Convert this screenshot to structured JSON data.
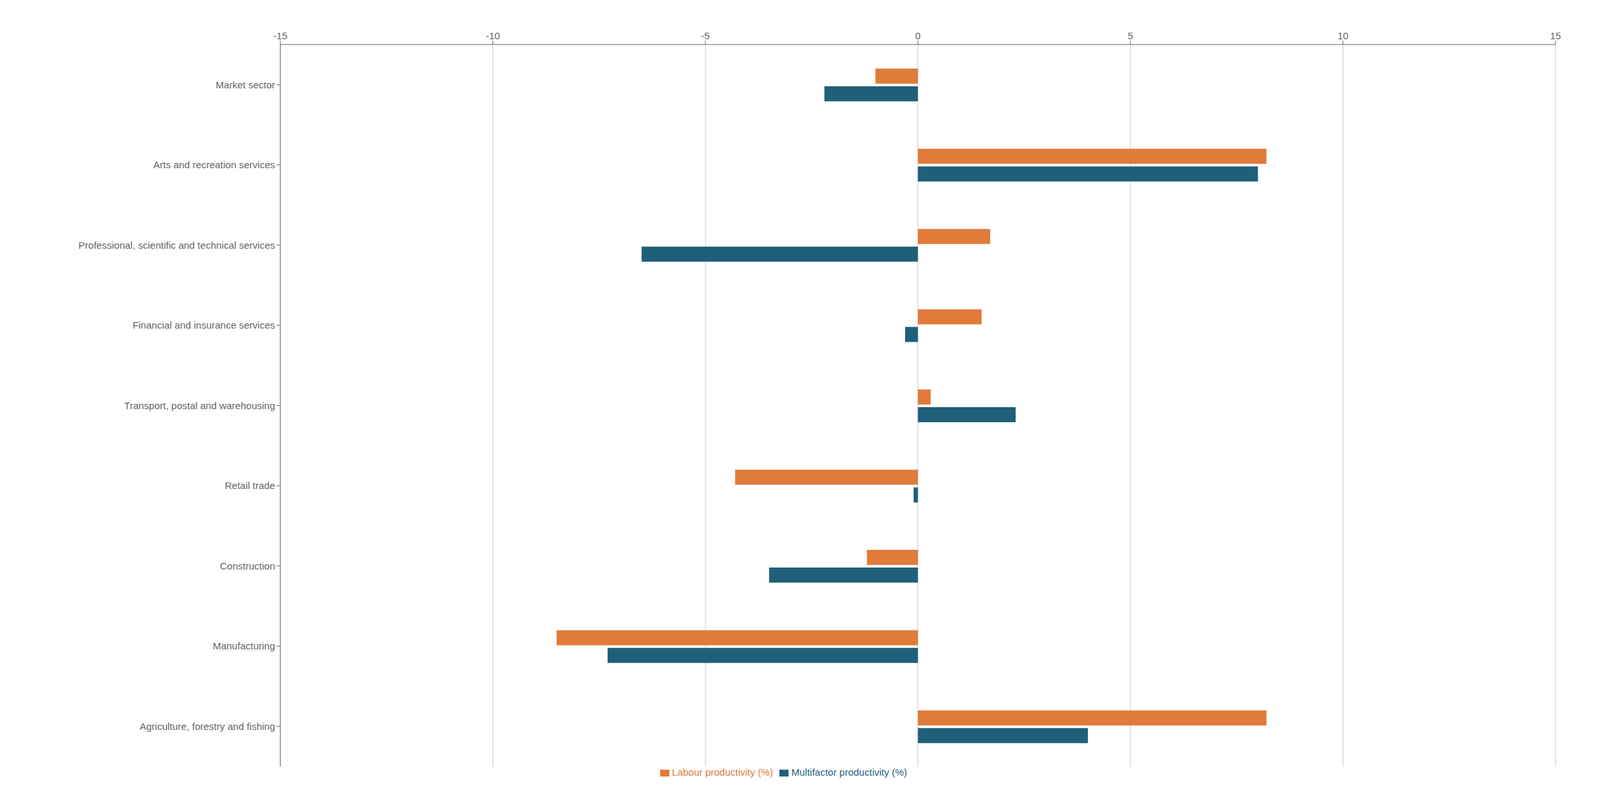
{
  "chart_data": {
    "type": "bar",
    "orientation": "horizontal",
    "categories": [
      "Market sector",
      "Arts and recreation services",
      "Professional, scientific and technical services",
      "Financial and insurance services",
      "Transport, postal and warehousing",
      "Retail trade",
      "Construction",
      "Manufacturing",
      "Agriculture, forestry and fishing"
    ],
    "series": [
      {
        "name": "Labour productivity (%)",
        "color": "#E07B39",
        "values": [
          -1.0,
          8.2,
          1.7,
          1.5,
          0.3,
          -4.3,
          -1.2,
          -8.5,
          8.2
        ]
      },
      {
        "name": "Multifactor productivity (%)",
        "color": "#1F5F7A",
        "values": [
          -2.2,
          8.0,
          -6.5,
          -0.3,
          2.3,
          -0.1,
          -3.5,
          -7.3,
          4.0
        ]
      }
    ],
    "xlim": [
      -15,
      15
    ],
    "xticks": [
      -15,
      -10,
      -5,
      0,
      5,
      10,
      15
    ],
    "grid": true,
    "legend": "bottom"
  }
}
